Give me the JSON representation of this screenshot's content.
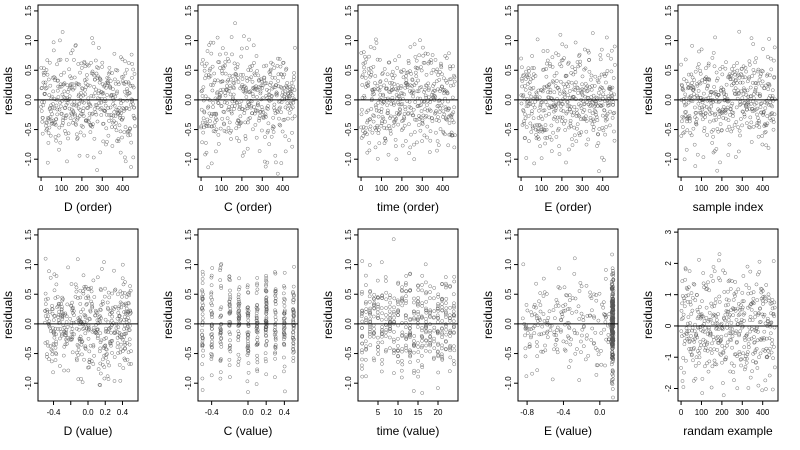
{
  "colors": {
    "point": "#555555",
    "axis": "#000000",
    "refline": "#000000"
  },
  "chart_data": [
    {
      "type": "scatter",
      "xlabel": "D (order)",
      "ylabel": "residuals",
      "xlim": [
        -15,
        475
      ],
      "ylim": [
        -1.3,
        1.6
      ],
      "xticks": [
        0,
        100,
        200,
        300,
        400
      ],
      "xtick_labels": [
        "0",
        "100",
        "200",
        "300",
        "400"
      ],
      "yticks": [
        -1.0,
        -0.5,
        0.0,
        0.5,
        1.0,
        1.5
      ],
      "ytick_labels": [
        "-1.0",
        "-0.5",
        "0.0",
        "0.5",
        "1.0",
        "1.5"
      ],
      "hline": 0,
      "dist": {
        "kind": "order",
        "n": 450,
        "max": 460,
        "sd": 0.42,
        "seed": 11
      }
    },
    {
      "type": "scatter",
      "xlabel": "C (order)",
      "ylabel": "residuals",
      "xlim": [
        -15,
        475
      ],
      "ylim": [
        -1.3,
        1.6
      ],
      "xticks": [
        0,
        100,
        200,
        300,
        400
      ],
      "xtick_labels": [
        "0",
        "100",
        "200",
        "300",
        "400"
      ],
      "yticks": [
        -1.0,
        -0.5,
        0.0,
        0.5,
        1.0,
        1.5
      ],
      "ytick_labels": [
        "-1.0",
        "-0.5",
        "0.0",
        "0.5",
        "1.0",
        "1.5"
      ],
      "hline": 0,
      "dist": {
        "kind": "order",
        "n": 450,
        "max": 460,
        "sd": 0.42,
        "seed": 23
      }
    },
    {
      "type": "scatter",
      "xlabel": "time (order)",
      "ylabel": "residuals",
      "xlim": [
        -15,
        475
      ],
      "ylim": [
        -1.3,
        1.6
      ],
      "xticks": [
        0,
        100,
        200,
        300,
        400
      ],
      "xtick_labels": [
        "0",
        "100",
        "200",
        "300",
        "400"
      ],
      "yticks": [
        -1.0,
        -0.5,
        0.0,
        0.5,
        1.0,
        1.5
      ],
      "ytick_labels": [
        "-1.0",
        "-0.5",
        "0.0",
        "0.5",
        "1.0",
        "1.5"
      ],
      "hline": 0,
      "dist": {
        "kind": "order",
        "n": 450,
        "max": 460,
        "sd": 0.42,
        "seed": 37
      }
    },
    {
      "type": "scatter",
      "xlabel": "E (order)",
      "ylabel": "residuals",
      "xlim": [
        -15,
        475
      ],
      "ylim": [
        -1.3,
        1.6
      ],
      "xticks": [
        0,
        100,
        200,
        300,
        400
      ],
      "xtick_labels": [
        "0",
        "100",
        "200",
        "300",
        "400"
      ],
      "yticks": [
        -1.0,
        -0.5,
        0.0,
        0.5,
        1.0,
        1.5
      ],
      "ytick_labels": [
        "-1.0",
        "-0.5",
        "0.0",
        "0.5",
        "1.0",
        "1.5"
      ],
      "hline": 0,
      "dist": {
        "kind": "order",
        "n": 450,
        "max": 460,
        "sd": 0.42,
        "seed": 41
      }
    },
    {
      "type": "scatter",
      "xlabel": "sample index",
      "ylabel": "residuals",
      "xlim": [
        -15,
        475
      ],
      "ylim": [
        -1.3,
        1.6
      ],
      "xticks": [
        0,
        100,
        200,
        300,
        400
      ],
      "xtick_labels": [
        "0",
        "100",
        "200",
        "300",
        "400"
      ],
      "yticks": [
        -1.0,
        -0.5,
        0.0,
        0.5,
        1.0,
        1.5
      ],
      "ytick_labels": [
        "-1.0",
        "-0.5",
        "0.0",
        "0.5",
        "1.0",
        "1.5"
      ],
      "hline": 0,
      "dist": {
        "kind": "order",
        "n": 450,
        "max": 460,
        "sd": 0.42,
        "seed": 53
      }
    },
    {
      "type": "scatter",
      "xlabel": "D (value)",
      "ylabel": "residuals",
      "xlim": [
        -0.58,
        0.58
      ],
      "ylim": [
        -1.3,
        1.6
      ],
      "xticks": [
        -0.4,
        -0.2,
        0.0,
        0.2,
        0.4
      ],
      "xtick_labels": [
        "-0.4",
        "",
        "0.0",
        "0.2",
        "0.4"
      ],
      "yticks": [
        -1.0,
        -0.5,
        0.0,
        0.5,
        1.0,
        1.5
      ],
      "ytick_labels": [
        "-1.0",
        "-0.5",
        "0.0",
        "0.5",
        "1.0",
        "1.5"
      ],
      "hline": 0,
      "dist": {
        "kind": "uniform",
        "n": 450,
        "min": -0.5,
        "max": 0.5,
        "sd": 0.42,
        "seed": 61
      }
    },
    {
      "type": "scatter",
      "xlabel": "C (value)",
      "ylabel": "residuals",
      "xlim": [
        -0.55,
        0.55
      ],
      "ylim": [
        -1.3,
        1.6
      ],
      "xticks": [
        -0.4,
        0.0,
        0.2,
        0.4
      ],
      "xtick_labels": [
        "-0.4",
        "0.0",
        "0.2",
        "0.4"
      ],
      "yticks": [
        -1.0,
        -0.5,
        0.0,
        0.5,
        1.0,
        1.5
      ],
      "ytick_labels": [
        "-1.0",
        "-0.5",
        "0.0",
        "0.5",
        "1.0",
        "1.5"
      ],
      "hline": 0,
      "dist": {
        "kind": "grid",
        "n": 450,
        "min": -0.5,
        "max": 0.5,
        "levels": 11,
        "sd": 0.42,
        "seed": 71
      }
    },
    {
      "type": "scatter",
      "xlabel": "time (value)",
      "ylabel": "residuals",
      "xlim": [
        0,
        25
      ],
      "ylim": [
        -1.3,
        1.6
      ],
      "xticks": [
        5,
        10,
        15,
        20
      ],
      "xtick_labels": [
        "5",
        "10",
        "15",
        "20"
      ],
      "yticks": [
        -1.0,
        -0.5,
        0.0,
        0.5,
        1.0,
        1.5
      ],
      "ytick_labels": [
        "-1.0",
        "-0.5",
        "0.0",
        "0.5",
        "1.0",
        "1.5"
      ],
      "hline": 0,
      "dist": {
        "kind": "grid",
        "n": 450,
        "min": 1,
        "max": 24,
        "levels": 24,
        "sd": 0.42,
        "seed": 83
      }
    },
    {
      "type": "scatter",
      "xlabel": "E (value)",
      "ylabel": "residuals",
      "xlim": [
        -0.9,
        0.2
      ],
      "ylim": [
        -1.3,
        1.6
      ],
      "xticks": [
        -0.8,
        -0.4,
        0.0
      ],
      "xtick_labels": [
        "-0.8",
        "-0.4",
        "0.0"
      ],
      "yticks": [
        -1.0,
        -0.5,
        0.0,
        0.5,
        1.0,
        1.5
      ],
      "ytick_labels": [
        "-1.0",
        "-0.5",
        "0.0",
        "0.5",
        "1.0",
        "1.5"
      ],
      "hline": 0,
      "dist": {
        "kind": "skew",
        "n": 450,
        "min": -0.85,
        "max": 0.15,
        "sd": 0.42,
        "seed": 97
      }
    },
    {
      "type": "scatter",
      "xlabel": "randam example",
      "ylabel": "residuals",
      "xlim": [
        -15,
        475
      ],
      "ylim": [
        -2.4,
        3.1
      ],
      "xticks": [
        0,
        100,
        200,
        300,
        400
      ],
      "xtick_labels": [
        "0",
        "100",
        "200",
        "300",
        "400"
      ],
      "yticks": [
        -2,
        -1,
        0,
        1,
        2,
        3
      ],
      "ytick_labels": [
        "-2",
        "-1",
        "0",
        "1",
        "2",
        "3"
      ],
      "hline": 0,
      "dist": {
        "kind": "order",
        "n": 450,
        "max": 460,
        "sd": 0.9,
        "seed": 101
      }
    }
  ]
}
